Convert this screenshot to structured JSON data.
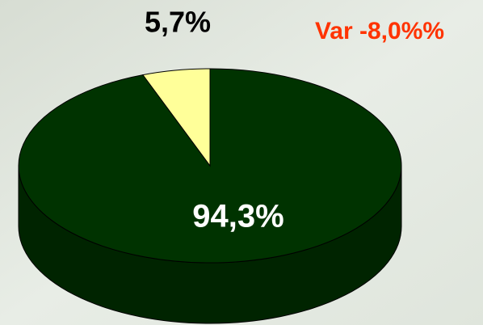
{
  "chart_data": {
    "type": "pie",
    "values": [
      94.3,
      5.7
    ],
    "value_labels": [
      "94,3%",
      "5,7%"
    ],
    "colors": [
      "#003300",
      "#ffff99"
    ],
    "annotation": "Var -8,0%%"
  }
}
